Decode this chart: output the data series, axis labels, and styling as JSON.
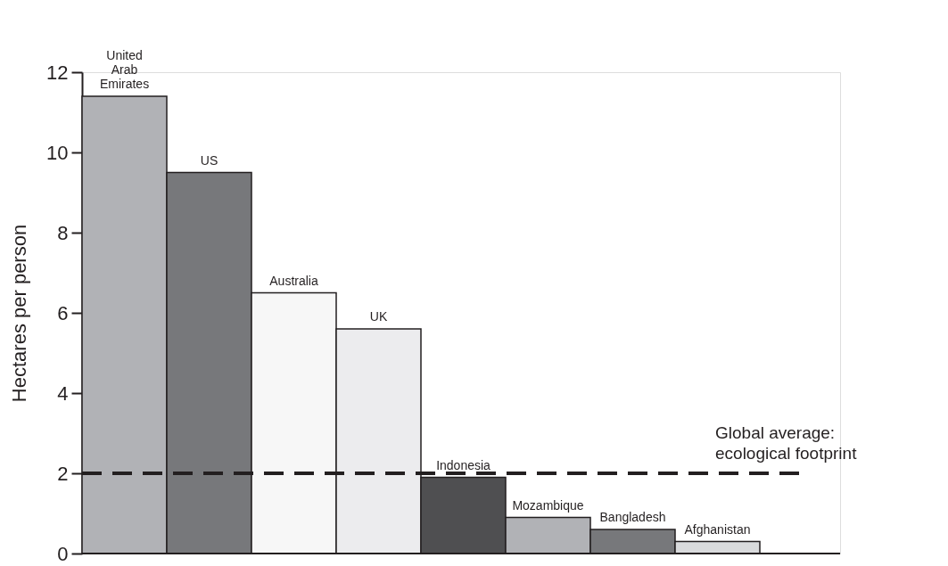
{
  "chart_data": {
    "type": "bar",
    "ylabel": "Hectares per person",
    "categories": [
      "United Arab Emirates",
      "US",
      "Australia",
      "UK",
      "Indonesia",
      "Mozambique",
      "Bangladesh",
      "Afghanistan"
    ],
    "values": [
      11.4,
      9.5,
      6.5,
      5.6,
      1.9,
      0.9,
      0.6,
      0.3
    ],
    "colors": [
      "#b1b2b6",
      "#77787b",
      "#f7f7f7",
      "#ececee",
      "#4f4f51",
      "#b1b2b6",
      "#77787b",
      "#d9dadc"
    ],
    "ylim": [
      0,
      12
    ],
    "yticks": [
      0,
      2,
      4,
      6,
      8,
      10,
      12
    ],
    "grid": false,
    "tick_labels": "y",
    "ref_lines": [
      {
        "axis": "y",
        "value": 2,
        "label": "Global average: ecological footprint",
        "color": "#231f20",
        "line_style": "dashed"
      }
    ]
  }
}
